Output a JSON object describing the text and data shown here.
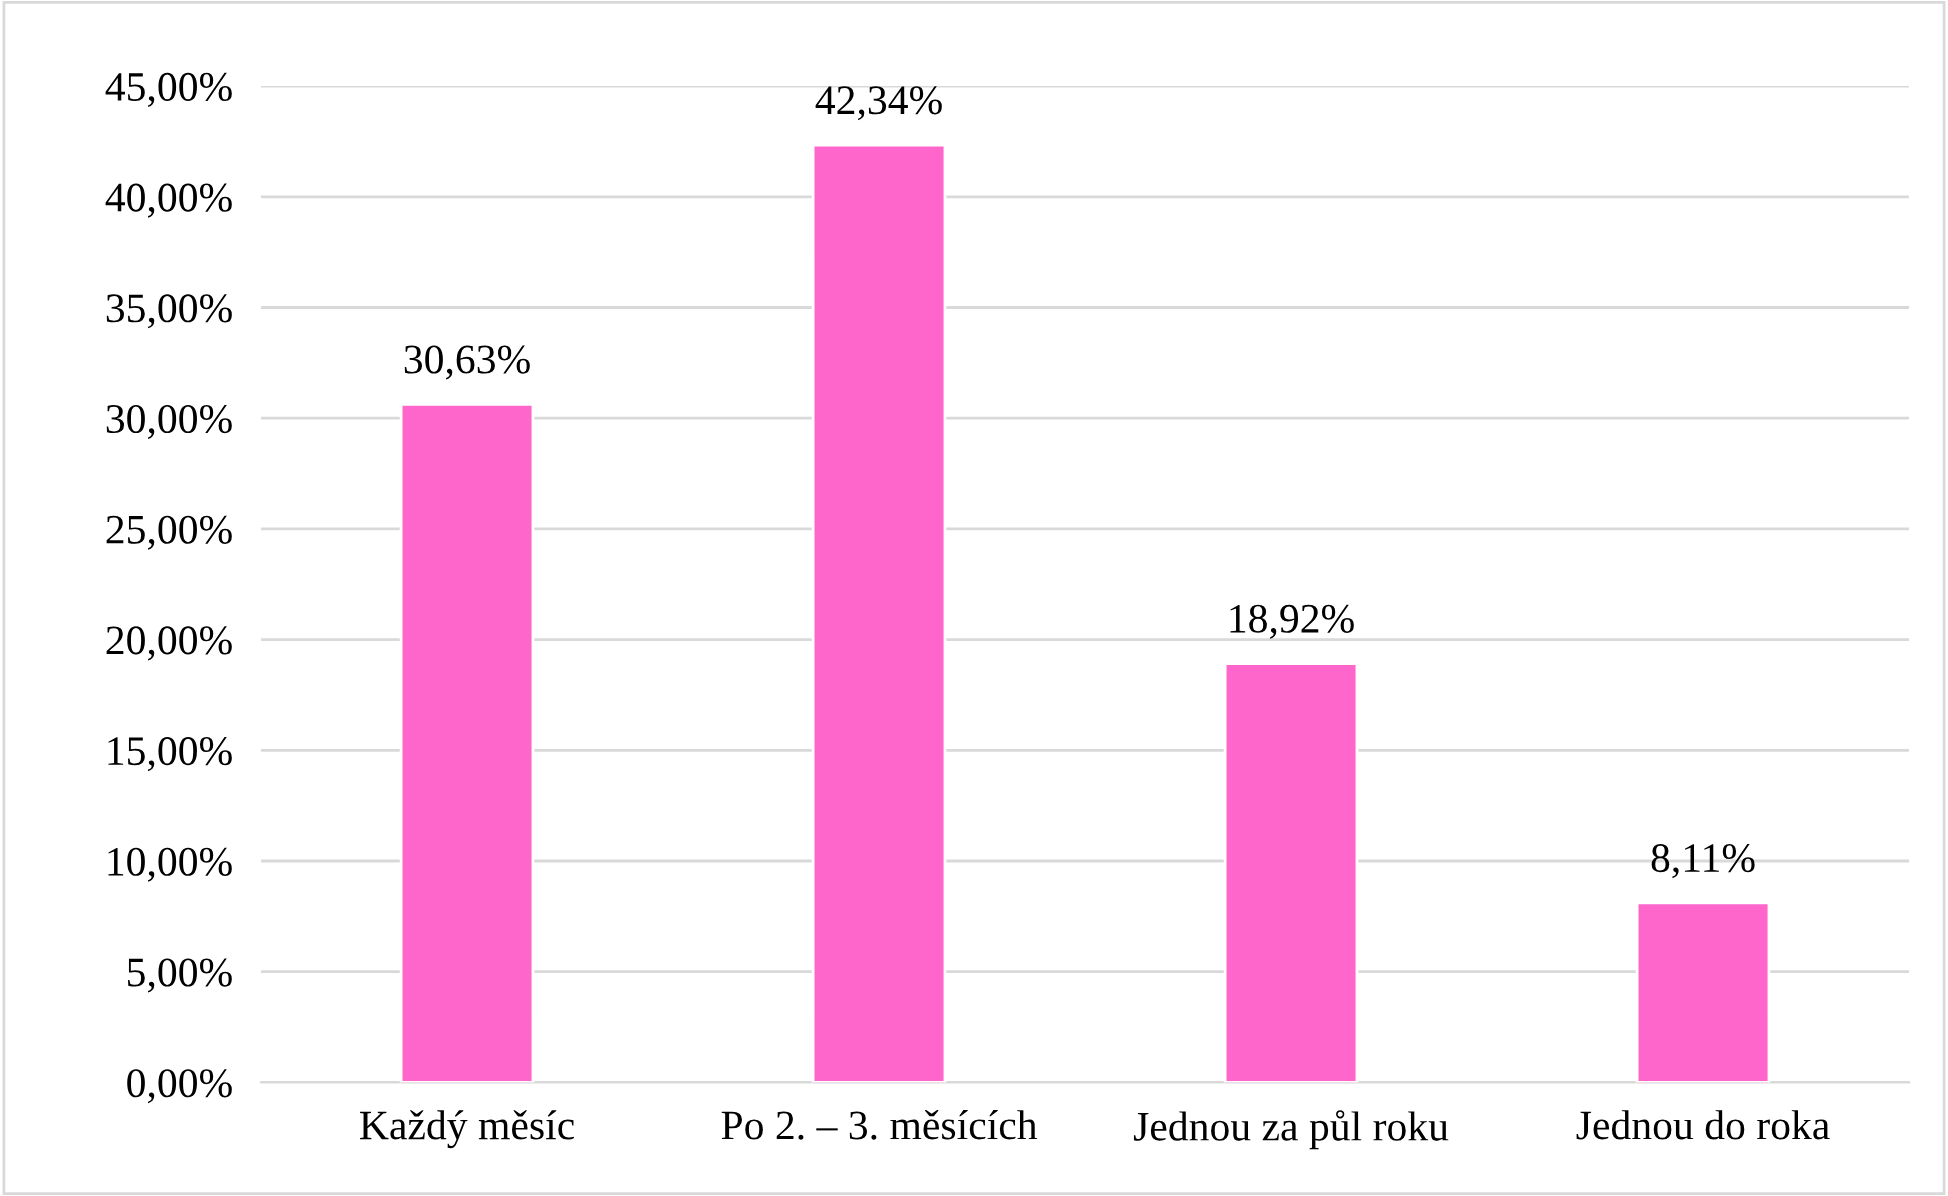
{
  "chart_data": {
    "type": "bar",
    "categories": [
      "Každý měsíc",
      "Po 2. – 3. měsících",
      "Jednou za půl roku",
      "Jednou do roka"
    ],
    "values": [
      30.63,
      42.34,
      18.92,
      8.11
    ],
    "value_labels": [
      "30,63%",
      "42,34%",
      "18,92%",
      "8,11%"
    ],
    "color": "#ff66cc",
    "ylim": [
      0,
      45
    ],
    "yticks": [
      {
        "value": 0,
        "label": "0,00%"
      },
      {
        "value": 5,
        "label": "5,00%"
      },
      {
        "value": 10,
        "label": "10,00%"
      },
      {
        "value": 15,
        "label": "15,00%"
      },
      {
        "value": 20,
        "label": "20,00%"
      },
      {
        "value": 25,
        "label": "25,00%"
      },
      {
        "value": 30,
        "label": "30,00%"
      },
      {
        "value": 35,
        "label": "35,00%"
      },
      {
        "value": 40,
        "label": "40,00%"
      },
      {
        "value": 45,
        "label": "45,00%"
      }
    ],
    "grid": "y",
    "legend": false
  }
}
